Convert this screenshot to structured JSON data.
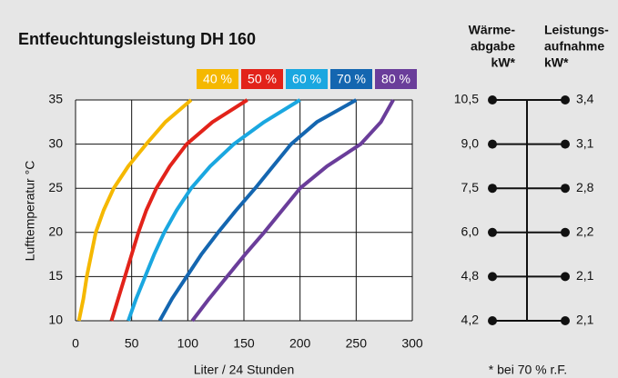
{
  "chart_data": {
    "type": "line",
    "title": "Entfeuchtungsleistung DH 160",
    "x_label": "Liter / 24 Stunden",
    "y_label": "Lufttemperatur °C",
    "xlim": [
      0,
      300
    ],
    "xticks": [
      0,
      50,
      100,
      150,
      200,
      250,
      300
    ],
    "ylim": [
      10,
      35
    ],
    "yticks": [
      10,
      15,
      20,
      25,
      30,
      35
    ],
    "grid": true,
    "series": [
      {
        "name": "40 %",
        "color": "#f5b800",
        "x": [
          3,
          7,
          10,
          14,
          18,
          25,
          34,
          47,
          63,
          80,
          103
        ],
        "values": [
          10,
          12.5,
          15,
          17.5,
          20,
          22.5,
          25,
          27.5,
          30,
          32.5,
          35
        ]
      },
      {
        "name": "50 %",
        "color": "#e2231a",
        "x": [
          32,
          38,
          44,
          50,
          56,
          63,
          72,
          84,
          99,
          122,
          153
        ],
        "values": [
          10,
          12.5,
          15,
          17.5,
          20,
          22.5,
          25,
          27.5,
          30,
          32.5,
          35
        ]
      },
      {
        "name": "60 %",
        "color": "#1aa7e0",
        "x": [
          47,
          54,
          62,
          70,
          79,
          90,
          103,
          120,
          141,
          168,
          200
        ],
        "values": [
          10,
          12.5,
          15,
          17.5,
          20,
          22.5,
          25,
          27.5,
          30,
          32.5,
          35
        ]
      },
      {
        "name": "70 %",
        "color": "#1466b0",
        "x": [
          75,
          86,
          99,
          112,
          127,
          143,
          160,
          176,
          192,
          215,
          250
        ],
        "values": [
          10,
          12.5,
          15,
          17.5,
          20,
          22.5,
          25,
          27.5,
          30,
          32.5,
          35
        ]
      },
      {
        "name": "80 %",
        "color": "#6a3d9a",
        "x": [
          104,
          119,
          135,
          151,
          168,
          184,
          200,
          224,
          254,
          272,
          283
        ],
        "values": [
          10,
          12.5,
          15,
          17.5,
          20,
          22.5,
          25,
          27.5,
          30,
          32.5,
          35
        ]
      }
    ]
  },
  "side_table": {
    "headers": [
      [
        "Wärme-",
        "abgabe",
        "kW*"
      ],
      [
        "Leistungs-",
        "aufnahme",
        "kW*"
      ]
    ],
    "rows": [
      [
        "10,5",
        "3,4"
      ],
      [
        "9,0",
        "3,1"
      ],
      [
        "7,5",
        "2,8"
      ],
      [
        "6,0",
        "2,2"
      ],
      [
        "4,8",
        "2,1"
      ],
      [
        "4,2",
        "2,1"
      ]
    ],
    "footnote": "* bei 70 % r.F."
  }
}
